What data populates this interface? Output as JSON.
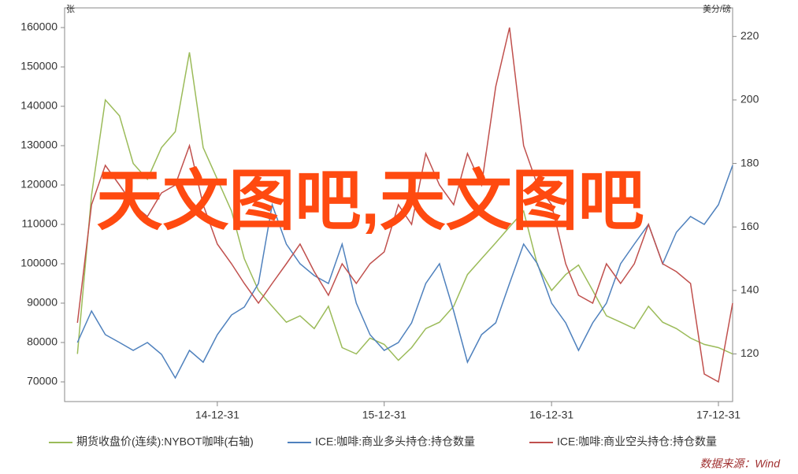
{
  "chart_data": {
    "type": "line",
    "watermark": "天文图吧,天文图吧",
    "source": "数据来源：Wind",
    "y_label": "张",
    "y2_label": "美分/磅",
    "x": [
      "2014-02-28",
      "2014-03-31",
      "2014-04-30",
      "2014-05-31",
      "2014-06-30",
      "2014-07-31",
      "2014-08-31",
      "2014-09-30",
      "2014-10-31",
      "2014-11-30",
      "2014-12-31",
      "2015-01-31",
      "2015-02-28",
      "2015-03-31",
      "2015-04-30",
      "2015-05-31",
      "2015-06-30",
      "2015-07-31",
      "2015-08-31",
      "2015-09-30",
      "2015-10-31",
      "2015-11-30",
      "2015-12-31",
      "2016-01-31",
      "2016-02-29",
      "2016-03-31",
      "2016-04-30",
      "2016-05-31",
      "2016-06-30",
      "2016-07-31",
      "2016-08-31",
      "2016-09-30",
      "2016-10-31",
      "2016-11-30",
      "2016-12-31",
      "2017-01-31",
      "2017-02-28",
      "2017-03-31",
      "2017-04-30",
      "2017-05-31",
      "2017-06-30",
      "2017-07-31",
      "2017-08-31",
      "2017-09-30",
      "2017-10-31",
      "2017-11-30",
      "2017-12-31",
      "2018-01-31"
    ],
    "xlim": [
      "2014-01-31",
      "2018-01-31"
    ],
    "xticks": [
      {
        "value": "2014-12-31",
        "label": "14-12-31"
      },
      {
        "value": "2015-12-31",
        "label": "15-12-31"
      },
      {
        "value": "2016-12-31",
        "label": "16-12-31"
      },
      {
        "value": "2017-12-31",
        "label": "17-12-31"
      }
    ],
    "ylim": [
      65000,
      165000
    ],
    "yticks": [
      70000,
      80000,
      90000,
      100000,
      110000,
      120000,
      130000,
      140000,
      150000,
      160000
    ],
    "y2lim": [
      105,
      229
    ],
    "y2ticks": [
      120,
      140,
      160,
      180,
      200,
      220
    ],
    "series": [
      {
        "name": "期货收盘价(连续):NYBOT咖啡(右轴)",
        "color": "#9bbb59",
        "axis": "y2",
        "values": [
          120,
          170,
          200,
          195,
          180,
          175,
          185,
          190,
          215,
          185,
          175,
          165,
          150,
          140,
          135,
          130,
          132,
          128,
          135,
          122,
          120,
          125,
          123,
          118,
          122,
          128,
          130,
          135,
          145,
          150,
          155,
          160,
          165,
          148,
          140,
          145,
          148,
          140,
          132,
          130,
          128,
          135,
          130,
          128,
          125,
          123,
          122,
          120
        ]
      },
      {
        "name": "ICE:咖啡:商业多头持仓:持仓数量",
        "color": "#4f81bd",
        "values": [
          80000,
          88000,
          82000,
          80000,
          78000,
          80000,
          77000,
          71000,
          78000,
          75000,
          82000,
          87000,
          89000,
          95000,
          115000,
          105000,
          100000,
          97000,
          95000,
          105000,
          90000,
          82000,
          78000,
          80000,
          85000,
          95000,
          100000,
          88000,
          75000,
          82000,
          85000,
          95000,
          105000,
          100000,
          90000,
          85000,
          78000,
          85000,
          90000,
          100000,
          105000,
          110000,
          100000,
          108000,
          112000,
          110000,
          115000,
          125000
        ]
      },
      {
        "name": "ICE:咖啡:商业空头持仓:持仓数量",
        "color": "#c0504d",
        "values": [
          85000,
          115000,
          125000,
          120000,
          115000,
          112000,
          118000,
          120000,
          130000,
          115000,
          105000,
          100000,
          95000,
          90000,
          95000,
          100000,
          105000,
          98000,
          92000,
          100000,
          95000,
          100000,
          103000,
          115000,
          110000,
          128000,
          120000,
          115000,
          128000,
          120000,
          145000,
          160000,
          130000,
          120000,
          115000,
          100000,
          92000,
          90000,
          100000,
          95000,
          100000,
          110000,
          100000,
          98000,
          95000,
          72000,
          70000,
          90000
        ]
      }
    ]
  }
}
